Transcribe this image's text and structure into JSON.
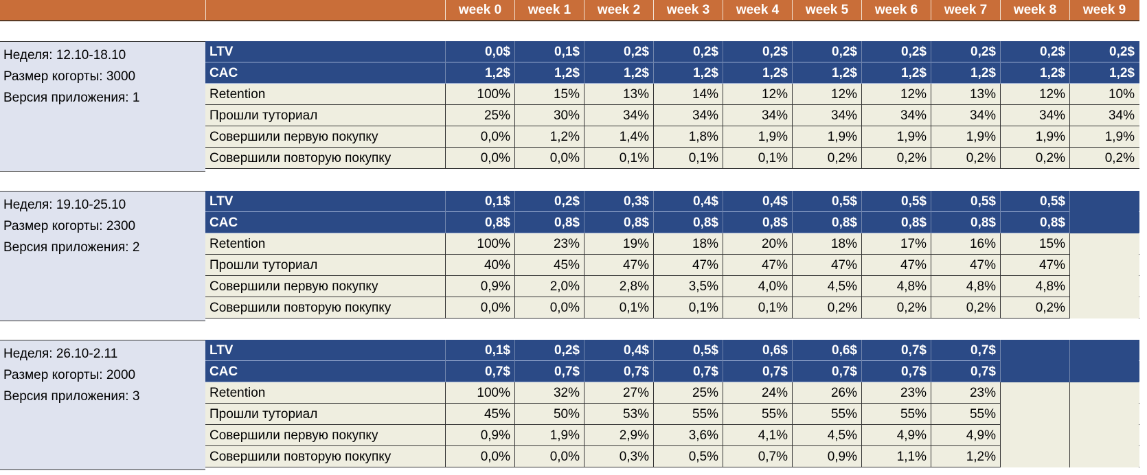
{
  "header": {
    "weeks": [
      "week 0",
      "week 1",
      "week 2",
      "week 3",
      "week 4",
      "week 5",
      "week 6",
      "week 7",
      "week 8",
      "week 9"
    ]
  },
  "cohorts": [
    {
      "info": [
        "Неделя: 12.10-18.10",
        "Размер когорты: 3000",
        "Версия приложения: 1"
      ],
      "rows": [
        {
          "name": "LTV",
          "style": "blue",
          "values": [
            "0,0$",
            "0,1$",
            "0,2$",
            "0,2$",
            "0,2$",
            "0,2$",
            "0,2$",
            "0,2$",
            "0,2$",
            "0,2$"
          ]
        },
        {
          "name": "CAC",
          "style": "blue",
          "values": [
            "1,2$",
            "1,2$",
            "1,2$",
            "1,2$",
            "1,2$",
            "1,2$",
            "1,2$",
            "1,2$",
            "1,2$",
            "1,2$"
          ]
        },
        {
          "name": "Retention",
          "style": "beige",
          "values": [
            "100%",
            "15%",
            "13%",
            "14%",
            "12%",
            "12%",
            "12%",
            "13%",
            "12%",
            "10%"
          ]
        },
        {
          "name": "Прошли туториал",
          "style": "beige",
          "values": [
            "25%",
            "30%",
            "34%",
            "34%",
            "34%",
            "34%",
            "34%",
            "34%",
            "34%",
            "34%"
          ]
        },
        {
          "name": "Совершили первую покупку",
          "style": "beige",
          "values": [
            "0,0%",
            "1,2%",
            "1,4%",
            "1,8%",
            "1,9%",
            "1,9%",
            "1,9%",
            "1,9%",
            "1,9%",
            "1,9%"
          ]
        },
        {
          "name": "Совершили повторую покупку",
          "style": "beige",
          "values": [
            "0,0%",
            "0,0%",
            "0,1%",
            "0,1%",
            "0,1%",
            "0,2%",
            "0,2%",
            "0,2%",
            "0,2%",
            "0,2%"
          ]
        }
      ]
    },
    {
      "info": [
        "Неделя: 19.10-25.10",
        "Размер когорты: 2300",
        "Версия приложения: 2"
      ],
      "rows": [
        {
          "name": "LTV",
          "style": "blue",
          "values": [
            "0,1$",
            "0,2$",
            "0,3$",
            "0,4$",
            "0,4$",
            "0,5$",
            "0,5$",
            "0,5$",
            "0,5$",
            ""
          ]
        },
        {
          "name": "CAC",
          "style": "blue",
          "values": [
            "0,8$",
            "0,8$",
            "0,8$",
            "0,8$",
            "0,8$",
            "0,8$",
            "0,8$",
            "0,8$",
            "0,8$",
            ""
          ]
        },
        {
          "name": "Retention",
          "style": "beige",
          "values": [
            "100%",
            "23%",
            "19%",
            "18%",
            "20%",
            "18%",
            "17%",
            "16%",
            "15%",
            ""
          ]
        },
        {
          "name": "Прошли туториал",
          "style": "beige",
          "values": [
            "40%",
            "45%",
            "47%",
            "47%",
            "47%",
            "47%",
            "47%",
            "47%",
            "47%",
            ""
          ]
        },
        {
          "name": "Совершили первую покупку",
          "style": "beige",
          "values": [
            "0,9%",
            "2,0%",
            "2,8%",
            "3,5%",
            "4,0%",
            "4,5%",
            "4,8%",
            "4,8%",
            "4,8%",
            ""
          ]
        },
        {
          "name": "Совершили повторую покупку",
          "style": "beige",
          "values": [
            "0,0%",
            "0,0%",
            "0,1%",
            "0,1%",
            "0,1%",
            "0,2%",
            "0,2%",
            "0,2%",
            "0,2%",
            ""
          ]
        }
      ]
    },
    {
      "info": [
        "Неделя: 26.10-2.11",
        "Размер когорты: 2000",
        "Версия приложения: 3"
      ],
      "rows": [
        {
          "name": "LTV",
          "style": "blue",
          "values": [
            "0,1$",
            "0,2$",
            "0,4$",
            "0,5$",
            "0,6$",
            "0,6$",
            "0,7$",
            "0,7$",
            "",
            ""
          ]
        },
        {
          "name": "CAC",
          "style": "blue",
          "values": [
            "0,7$",
            "0,7$",
            "0,7$",
            "0,7$",
            "0,7$",
            "0,7$",
            "0,7$",
            "0,7$",
            "",
            ""
          ]
        },
        {
          "name": "Retention",
          "style": "beige",
          "values": [
            "100%",
            "32%",
            "27%",
            "25%",
            "24%",
            "26%",
            "23%",
            "23%",
            "",
            ""
          ]
        },
        {
          "name": "Прошли туториал",
          "style": "beige",
          "values": [
            "45%",
            "50%",
            "53%",
            "55%",
            "55%",
            "55%",
            "55%",
            "55%",
            "",
            ""
          ]
        },
        {
          "name": "Совершили первую покупку",
          "style": "beige",
          "values": [
            "0,9%",
            "1,9%",
            "2,9%",
            "3,6%",
            "4,1%",
            "4,5%",
            "4,9%",
            "4,9%",
            "",
            ""
          ]
        },
        {
          "name": "Совершили повторую покупку",
          "style": "beige",
          "values": [
            "0,0%",
            "0,0%",
            "0,3%",
            "0,5%",
            "0,7%",
            "0,9%",
            "1,1%",
            "1,2%",
            "",
            ""
          ]
        }
      ]
    }
  ]
}
